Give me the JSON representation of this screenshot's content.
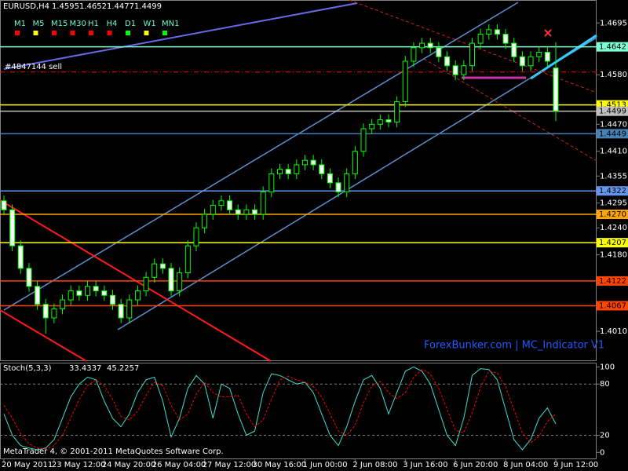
{
  "chart_data": [
    {
      "type": "candlestick",
      "symbol": "EURUSD,H4",
      "categories": [
        "20 May 2011",
        null,
        null,
        null,
        null,
        null,
        "23 May 12:00",
        null,
        null,
        null,
        null,
        null,
        "24 May 20:00",
        null,
        null,
        null,
        null,
        null,
        "26 May 04:00",
        null,
        null,
        null,
        null,
        null,
        "27 May 12:00",
        null,
        null,
        null,
        null,
        null,
        "30 May 16:00",
        null,
        null,
        null,
        null,
        null,
        "1 Jun 00:00",
        null,
        null,
        null,
        null,
        null,
        "2 Jun 08:00",
        null,
        null,
        null,
        null,
        null,
        "3 Jun 16:00",
        null,
        null,
        null,
        null,
        null,
        "6 Jun 20:00",
        null,
        null,
        null,
        null,
        null,
        "8 Jun 04:00",
        null,
        null,
        null,
        null,
        null,
        "9 Jun 12:00"
      ],
      "open": [
        1.43,
        1.428,
        1.42,
        1.415,
        1.411,
        1.407,
        1.404,
        1.406,
        1.408,
        1.41,
        1.409,
        1.411,
        1.41,
        1.409,
        1.407,
        1.404,
        1.408,
        1.41,
        1.413,
        1.416,
        1.415,
        1.41,
        1.414,
        1.42,
        1.424,
        1.427,
        1.429,
        1.43,
        1.428,
        1.427,
        1.428,
        1.427,
        1.432,
        1.436,
        1.437,
        1.436,
        1.438,
        1.439,
        1.438,
        1.436,
        1.434,
        1.432,
        1.436,
        1.441,
        1.446,
        1.447,
        1.448,
        1.4475,
        1.452,
        1.461,
        1.464,
        1.465,
        1.464,
        1.462,
        1.46,
        1.458,
        1.46,
        1.465,
        1.467,
        1.468,
        1.467,
        1.465,
        1.462,
        1.46,
        1.462,
        1.463,
        1.4595
      ],
      "high": [
        1.4312,
        1.4292,
        1.4212,
        1.4162,
        1.4122,
        1.4082,
        1.4072,
        1.4092,
        1.4112,
        1.4112,
        1.4122,
        1.4122,
        1.4112,
        1.4102,
        1.4082,
        1.4092,
        1.4112,
        1.4142,
        1.4172,
        1.4172,
        1.4162,
        1.4152,
        1.4212,
        1.4252,
        1.4282,
        1.4302,
        1.4312,
        1.4312,
        1.4292,
        1.4292,
        1.4292,
        1.4332,
        1.4372,
        1.4382,
        1.4382,
        1.4392,
        1.4402,
        1.4402,
        1.4392,
        1.4372,
        1.4352,
        1.4372,
        1.4422,
        1.4472,
        1.4482,
        1.4492,
        1.4492,
        1.4532,
        1.4622,
        1.4652,
        1.4662,
        1.4662,
        1.4652,
        1.4632,
        1.4612,
        1.4612,
        1.4662,
        1.4682,
        1.4692,
        1.4692,
        1.4682,
        1.4662,
        1.4632,
        1.4632,
        1.4642,
        1.4642,
        1.4652
      ],
      "low": [
        1.4268,
        1.4188,
        1.4138,
        1.4098,
        1.4058,
        1.4005,
        1.4028,
        1.4048,
        1.4068,
        1.4078,
        1.4078,
        1.4088,
        1.4078,
        1.4058,
        1.4028,
        1.4028,
        1.4068,
        1.4088,
        1.4118,
        1.4138,
        1.4088,
        1.4088,
        1.4128,
        1.4188,
        1.4228,
        1.4258,
        1.4278,
        1.4268,
        1.4258,
        1.4258,
        1.4258,
        1.4258,
        1.4308,
        1.4348,
        1.4348,
        1.4348,
        1.4368,
        1.4368,
        1.4348,
        1.4328,
        1.4308,
        1.4308,
        1.4348,
        1.4398,
        1.4448,
        1.4458,
        1.4463,
        1.4463,
        1.4508,
        1.4598,
        1.4628,
        1.4628,
        1.4608,
        1.4588,
        1.4568,
        1.4568,
        1.4588,
        1.4638,
        1.4658,
        1.4658,
        1.4638,
        1.4608,
        1.4588,
        1.4588,
        1.4608,
        1.4598,
        1.4477
      ],
      "close": [
        1.428,
        1.42,
        1.415,
        1.411,
        1.407,
        1.404,
        1.406,
        1.408,
        1.41,
        1.409,
        1.411,
        1.41,
        1.409,
        1.407,
        1.404,
        1.408,
        1.41,
        1.413,
        1.416,
        1.415,
        1.41,
        1.414,
        1.42,
        1.424,
        1.427,
        1.429,
        1.43,
        1.428,
        1.427,
        1.428,
        1.427,
        1.432,
        1.436,
        1.437,
        1.436,
        1.438,
        1.439,
        1.438,
        1.436,
        1.434,
        1.432,
        1.436,
        1.441,
        1.446,
        1.447,
        1.448,
        1.4475,
        1.452,
        1.461,
        1.464,
        1.465,
        1.464,
        1.462,
        1.46,
        1.458,
        1.46,
        1.465,
        1.467,
        1.468,
        1.467,
        1.465,
        1.462,
        1.46,
        1.462,
        1.463,
        1.461,
        1.4499
      ],
      "up_color": "#000000",
      "down_color": "#f0fff0",
      "wick_color": "#00ff00",
      "ylim": [
        1.3944,
        1.4746
      ],
      "yticks": [
        1.4695,
        {
          "value": 1.458,
          "label": "1.4580"
        },
        {
          "value": 1.447,
          "label": "1.4470"
        },
        {
          "value": 1.441,
          "label": "1.4410"
        },
        1.4355,
        1.4295,
        {
          "value": 1.424,
          "label": "1.4240"
        },
        {
          "value": 1.418,
          "label": "1.4180"
        },
        {
          "value": 1.401,
          "label": "1.4010"
        }
      ],
      "levels": [
        {
          "value": 1.4642,
          "color": "#7fffd4"
        },
        {
          "value": 1.4513,
          "color": "#ffff00"
        },
        {
          "value": 1.4499,
          "color": "#c0c0c0"
        },
        {
          "value": 1.4449,
          "color": "#4682b4"
        },
        {
          "value": 1.4322,
          "color": "#6495ed"
        },
        {
          "value": 1.427,
          "label": "1.4270",
          "color": "#ffa500"
        },
        {
          "value": 1.4207,
          "color": "#ffff00"
        },
        {
          "value": 1.4122,
          "color": "#ff4500"
        },
        {
          "value": 1.4067,
          "color": "#ff4500"
        }
      ],
      "order_line": {
        "label": "#4847144 sell",
        "value": 1.4586,
        "color": "#ff0000"
      },
      "timeframes": [
        {
          "label": "M1",
          "color": "#ff0000"
        },
        {
          "label": "M5",
          "color": "#ffff00"
        },
        {
          "label": "M15",
          "color": "#ff0000"
        },
        {
          "label": "M30",
          "color": "#ff0000"
        },
        {
          "label": "H1",
          "color": "#ff0000"
        },
        {
          "label": "H4",
          "color": "#ff0000"
        },
        {
          "label": "D1",
          "color": "#00ff00"
        },
        {
          "label": "W1",
          "color": "#ffff00"
        },
        {
          "label": "MN1",
          "color": "#00ff00"
        }
      ],
      "watermark": "ForexBunker.com | MC_Indicator V1"
    },
    {
      "type": "line",
      "title": "Stoch(5,3,3)",
      "series": [
        {
          "color": "#40e0d0",
          "values": [
            45,
            20,
            8,
            5,
            3,
            5,
            15,
            40,
            65,
            80,
            88,
            85,
            60,
            40,
            30,
            45,
            70,
            85,
            88,
            60,
            18,
            40,
            75,
            90,
            80,
            40,
            80,
            75,
            45,
            20,
            25,
            70,
            92,
            90,
            85,
            80,
            82,
            70,
            45,
            20,
            8,
            30,
            60,
            85,
            90,
            75,
            45,
            70,
            95,
            100,
            95,
            80,
            50,
            20,
            8,
            40,
            90,
            98,
            97,
            85,
            50,
            15,
            3,
            15,
            40,
            52,
            33.4337
          ]
        },
        {
          "color": "#ff0000",
          "dashed": true,
          "values": [
            55,
            40,
            22,
            10,
            5,
            4,
            8,
            20,
            40,
            62,
            78,
            85,
            78,
            62,
            42,
            38,
            48,
            67,
            82,
            78,
            55,
            38,
            45,
            68,
            82,
            70,
            65,
            65,
            67,
            45,
            30,
            38,
            62,
            85,
            89,
            85,
            82,
            77,
            65,
            45,
            25,
            20,
            32,
            58,
            78,
            83,
            70,
            63,
            70,
            88,
            97,
            92,
            75,
            50,
            26,
            23,
            46,
            76,
            95,
            93,
            77,
            50,
            23,
            11,
            19,
            36,
            45.2257
          ]
        }
      ],
      "ylim": [
        -8,
        105
      ],
      "yticks": [
        100,
        80,
        20,
        0
      ]
    }
  ],
  "footer": "MetaTrader 4, © 2001-2011 MetaQuotes Software Corp."
}
